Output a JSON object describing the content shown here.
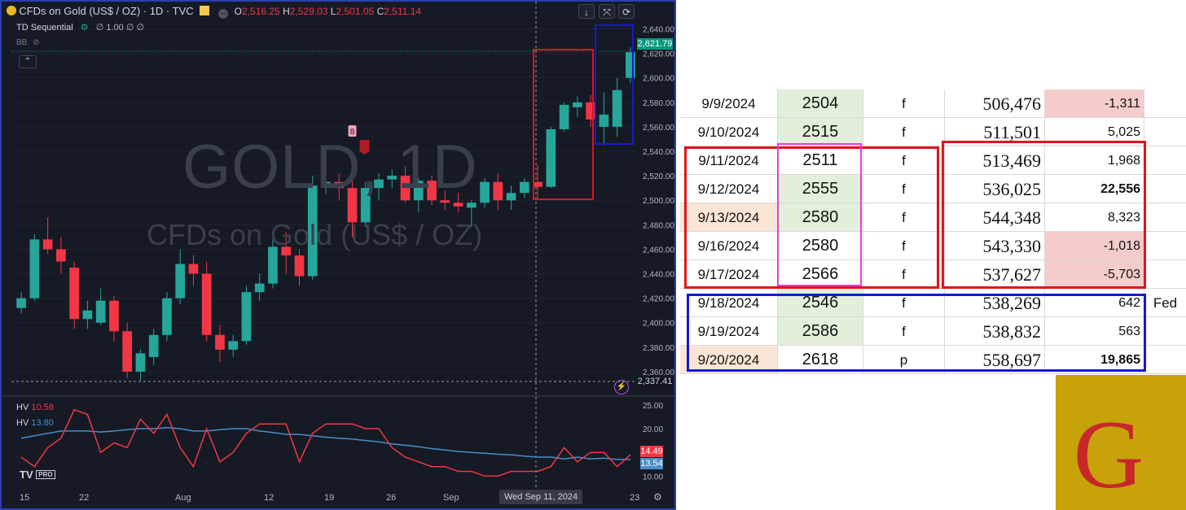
{
  "chart": {
    "symbol": "CFDs on Gold (US$ / OZ) · 1D · TVC",
    "ohlc": [
      {
        "k": "O",
        "v": "2,516.25"
      },
      {
        "k": "H",
        "v": "2,529.03"
      },
      {
        "k": "L",
        "v": "2,501.05"
      },
      {
        "k": "C",
        "v": "2,511.14"
      }
    ],
    "indicator": "TD Sequential",
    "indicator_params": "∅ 1.00 ∅ ∅",
    "bb_label": "BB",
    "watermark_line1": "GOLD, 1D",
    "watermark_line2": "CFDs on Gold (US$ / OZ)",
    "last_price": "2,621.79",
    "crosshair_price": "2,337.41",
    "crosshair_date": "Wed Sep 11, 2024",
    "td_count": "8",
    "hv_label_1": "HV",
    "hv_value_1": "10.58",
    "hv_label_2": "HV",
    "hv_value_2": "13.80",
    "hv_badge_red": "14.49",
    "hv_badge_blue": "13.54",
    "tv_logo": "TV",
    "tv_pro": "PRO",
    "colors": {
      "up": "#26a69a",
      "down": "#f23645",
      "bg": "#161a25",
      "hv_fast": "#f23645",
      "hv_slow": "#4a8fc7"
    }
  },
  "chart_data": {
    "type": "candlestick",
    "title": "CFDs on Gold (US$ / OZ) · 1D · TVC",
    "x_tick_labels": [
      "15",
      "22",
      "Aug",
      "12",
      "19",
      "26",
      "Sep",
      "23"
    ],
    "y_tick_labels": [
      "2,640.00",
      "2,620.00",
      "2,600.00",
      "2,580.00",
      "2,560.00",
      "2,540.00",
      "2,520.00",
      "2,500.00",
      "2,480.00",
      "2,460.00",
      "2,440.00",
      "2,420.00",
      "2,400.00",
      "2,380.00",
      "2,360.00"
    ],
    "ylim": [
      2350,
      2645
    ],
    "hv_y_tick_labels": [
      "25.00",
      "20.00",
      "15.00",
      "10.00"
    ],
    "hv_ylim": [
      8,
      26
    ],
    "candles": [
      [
        2412,
        2425,
        2408,
        2420
      ],
      [
        2420,
        2472,
        2418,
        2468
      ],
      [
        2468,
        2486,
        2456,
        2460
      ],
      [
        2460,
        2470,
        2440,
        2450
      ],
      [
        2445,
        2450,
        2395,
        2403
      ],
      [
        2403,
        2418,
        2395,
        2410
      ],
      [
        2400,
        2428,
        2398,
        2418
      ],
      [
        2418,
        2422,
        2385,
        2393
      ],
      [
        2393,
        2400,
        2355,
        2360
      ],
      [
        2360,
        2378,
        2352,
        2375
      ],
      [
        2372,
        2395,
        2365,
        2390
      ],
      [
        2390,
        2425,
        2385,
        2420
      ],
      [
        2420,
        2460,
        2415,
        2448
      ],
      [
        2448,
        2455,
        2430,
        2440
      ],
      [
        2440,
        2450,
        2385,
        2390
      ],
      [
        2390,
        2398,
        2368,
        2378
      ],
      [
        2378,
        2390,
        2372,
        2385
      ],
      [
        2385,
        2430,
        2382,
        2425
      ],
      [
        2425,
        2440,
        2418,
        2432
      ],
      [
        2432,
        2470,
        2428,
        2462
      ],
      [
        2462,
        2474,
        2440,
        2455
      ],
      [
        2455,
        2460,
        2430,
        2438
      ],
      [
        2438,
        2520,
        2435,
        2512
      ],
      [
        2512,
        2538,
        2505,
        2515
      ],
      [
        2515,
        2522,
        2500,
        2510
      ],
      [
        2510,
        2520,
        2470,
        2482
      ],
      [
        2482,
        2515,
        2478,
        2510
      ],
      [
        2510,
        2522,
        2500,
        2517
      ],
      [
        2517,
        2525,
        2510,
        2520
      ],
      [
        2520,
        2528,
        2498,
        2500
      ],
      [
        2500,
        2518,
        2490,
        2516
      ],
      [
        2516,
        2520,
        2496,
        2500
      ],
      [
        2500,
        2508,
        2492,
        2498
      ],
      [
        2498,
        2506,
        2490,
        2495
      ],
      [
        2494,
        2500,
        2478,
        2498
      ],
      [
        2498,
        2518,
        2494,
        2515
      ],
      [
        2515,
        2522,
        2492,
        2500
      ],
      [
        2500,
        2512,
        2492,
        2506
      ],
      [
        2506,
        2518,
        2502,
        2515
      ],
      [
        2515,
        2529,
        2501,
        2511
      ],
      [
        2511,
        2560,
        2510,
        2558
      ],
      [
        2558,
        2580,
        2556,
        2578
      ],
      [
        2576,
        2585,
        2568,
        2580
      ],
      [
        2580,
        2586,
        2560,
        2566
      ],
      [
        2560,
        2588,
        2545,
        2570
      ],
      [
        2560,
        2600,
        2552,
        2590
      ],
      [
        2600,
        2625,
        2596,
        2621
      ]
    ],
    "hv_fast": [
      14,
      12,
      16,
      18,
      24,
      23,
      15,
      17,
      16,
      22,
      19,
      23,
      16,
      12,
      20,
      13,
      15,
      19,
      21,
      21,
      21,
      13,
      19,
      21,
      21,
      21,
      20,
      20,
      16,
      14,
      13,
      12,
      12,
      11,
      11,
      10,
      10,
      11,
      11,
      11,
      12,
      16,
      13,
      15,
      15,
      12,
      14.5
    ],
    "hv_slow": [
      18,
      18.5,
      19,
      19.5,
      19.5,
      19.5,
      19.3,
      19.5,
      19.8,
      20,
      20,
      20.2,
      20,
      19.5,
      19.5,
      19.8,
      20,
      20,
      19.5,
      19.2,
      18.8,
      18.8,
      18.5,
      18.2,
      18,
      17.8,
      17.5,
      17.2,
      16.8,
      16.5,
      16.2,
      15.8,
      15.5,
      15.2,
      15,
      14.8,
      14.6,
      14.5,
      14.2,
      14,
      14,
      13.6,
      14,
      13.6,
      13.8,
      13.5,
      13.5
    ]
  },
  "table": {
    "rows": [
      {
        "date": "9/9/2024",
        "price": "2504",
        "f": "f",
        "oi": "506,476",
        "chg": "-1,311",
        "extra": ""
      },
      {
        "date": "9/10/2024",
        "price": "2515",
        "f": "f",
        "oi": "511,501",
        "chg": "5,025",
        "extra": ""
      },
      {
        "date": "9/11/2024",
        "price": "2511",
        "f": "f",
        "oi": "513,469",
        "chg": "1,968",
        "extra": ""
      },
      {
        "date": "9/12/2024",
        "price": "2555",
        "f": "f",
        "oi": "536,025",
        "chg": "22,556",
        "extra": ""
      },
      {
        "date": "9/13/2024",
        "price": "2580",
        "f": "f",
        "oi": "544,348",
        "chg": "8,323",
        "extra": ""
      },
      {
        "date": "9/16/2024",
        "price": "2580",
        "f": "f",
        "oi": "543,330",
        "chg": "-1,018",
        "extra": ""
      },
      {
        "date": "9/17/2024",
        "price": "2566",
        "f": "f",
        "oi": "537,627",
        "chg": "-5,703",
        "extra": ""
      },
      {
        "date": "9/18/2024",
        "price": "2546",
        "f": "f",
        "oi": "538,269",
        "chg": "642",
        "extra": "Fed"
      },
      {
        "date": "9/19/2024",
        "price": "2586",
        "f": "f",
        "oi": "538,832",
        "chg": "563",
        "extra": ""
      },
      {
        "date": "9/20/2024",
        "price": "2618",
        "f": "p",
        "oi": "558,697",
        "chg": "19,865",
        "extra": ""
      }
    ],
    "row_colors": {
      "date_peach": "#fbe5d6",
      "price_green": "#e2efda",
      "chg_pink": "#f4cccc"
    }
  },
  "logo": {
    "letter": "G"
  }
}
